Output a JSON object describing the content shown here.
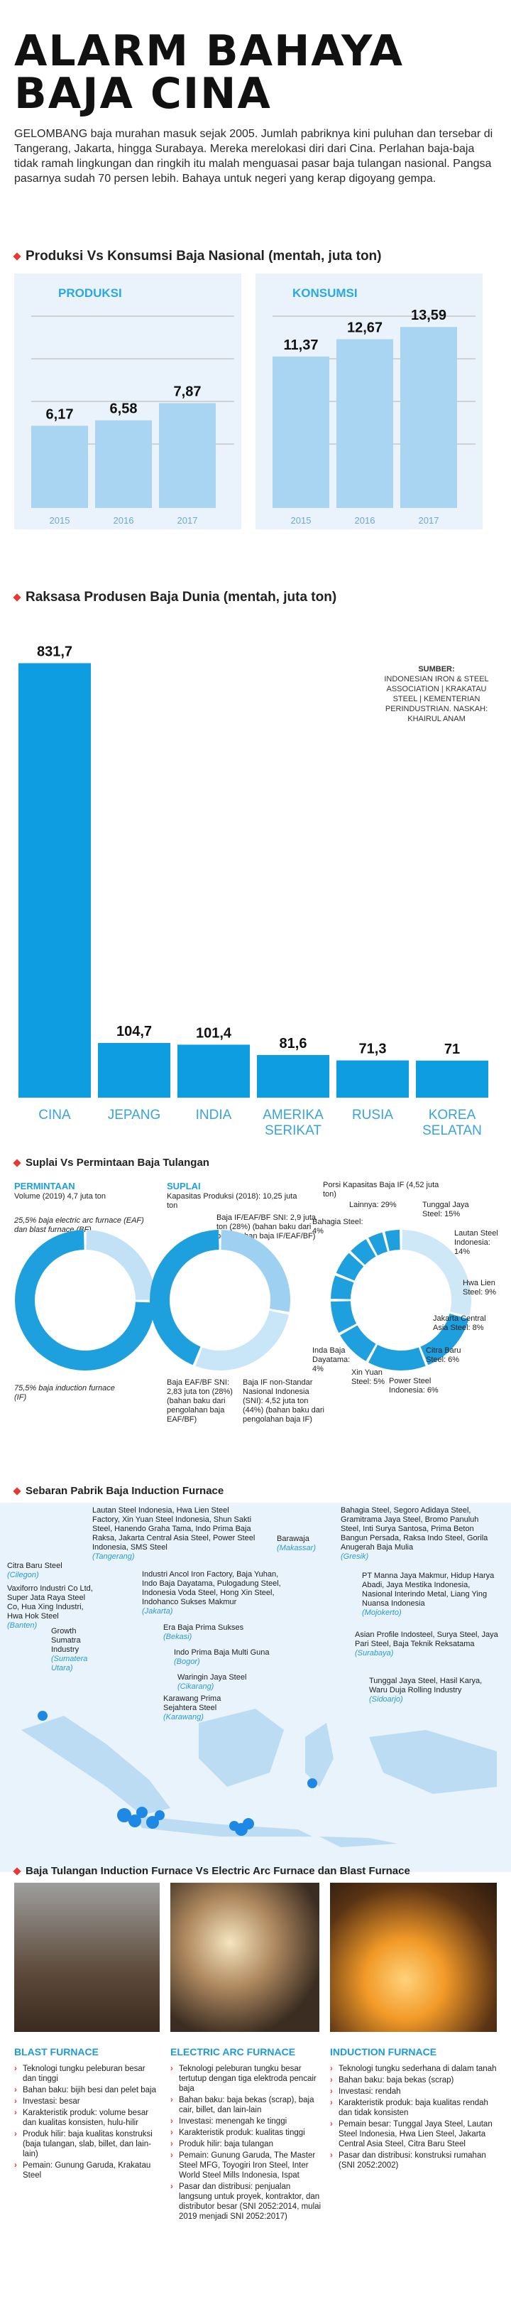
{
  "title_line1": "ALARM BAHAYA",
  "title_line2": "BAJA CINA",
  "lead": "GELOMBANG baja murahan masuk sejak 2005. Jumlah pabriknya kini puluhan dan tersebar di Tangerang, Jakarta, hingga Surabaya. Mereka merelokasi diri dari Cina. Perlahan baja-baja tidak ramah lingkungan dan ringkih itu malah menguasai pasar baja tulangan nasional. Pangsa pasarnya sudah 70 persen lebih. Bahaya untuk negeri yang kerap digoyang gempa.",
  "colors": {
    "accent": "#e53935",
    "blue_light": "#a9d4f2",
    "blue_dark": "#0d9de0",
    "panel": "#eaf3fb"
  },
  "section1": {
    "title": "Produksi Vs Konsumsi Baja Nasional (mentah, juta ton)"
  },
  "chart_data": [
    {
      "type": "bar",
      "title": "PRODUKSI",
      "categories": [
        "2015",
        "2016",
        "2017"
      ],
      "values": [
        6.17,
        6.58,
        7.87
      ],
      "labels": [
        "6,17",
        "6,58",
        "7,87"
      ]
    },
    {
      "type": "bar",
      "title": "KONSUMSI",
      "categories": [
        "2015",
        "2016",
        "2017"
      ],
      "values": [
        11.37,
        12.67,
        13.59
      ],
      "labels": [
        "11,37",
        "12,67",
        "13,59"
      ]
    },
    {
      "type": "bar",
      "title": "Raksasa Produsen Baja Dunia (mentah, juta ton)",
      "categories": [
        "CINA",
        "JEPANG",
        "INDIA",
        "AMERIKA SERIKAT",
        "RUSIA",
        "KOREA SELATAN"
      ],
      "values": [
        831.7,
        104.7,
        101.4,
        81.6,
        71.3,
        71
      ],
      "labels": [
        "831,7",
        "104,7",
        "101,4",
        "81,6",
        "71,3",
        "71"
      ]
    },
    {
      "type": "pie",
      "title": "PERMINTAAN",
      "slices": [
        {
          "label": "25,5% baja electric arc furnace (EAF) dan blast furnace (BF)",
          "value": 25.5
        },
        {
          "label": "75,5% baja induction furnace (IF)",
          "value": 75.5
        }
      ]
    },
    {
      "type": "pie",
      "title": "SUPLAI",
      "slices": [
        {
          "label": "Baja IF/EAF/BF SNI: 2,9 juta ton (28%) (bahan baku dari pengolahan baja IF/EAF/BF)",
          "value": 28
        },
        {
          "label": "Baja EAF/BF SNI: 2,83 juta ton (28%)",
          "value": 28
        },
        {
          "label": "Baja IF non-Standar Nasional Indonesia (SNI): 4,52 juta ton (44%)",
          "value": 44
        }
      ]
    },
    {
      "type": "pie",
      "title": "Porsi Kapasitas Baja IF (4,52 juta ton)",
      "slices": [
        {
          "label": "Lainnya",
          "value": 29
        },
        {
          "label": "Tunggal Jaya Steel",
          "value": 15
        },
        {
          "label": "Lautan Steel Indonesia",
          "value": 14
        },
        {
          "label": "Hwa Lien Steel",
          "value": 9
        },
        {
          "label": "Jakarta Central Asia Steel",
          "value": 8
        },
        {
          "label": "Citra Baru Steel",
          "value": 6
        },
        {
          "label": "Power Steel Indonesia",
          "value": 6
        },
        {
          "label": "Xin Yuan Steel",
          "value": 5
        },
        {
          "label": "Inda Baja Dayatama",
          "value": 4
        },
        {
          "label": "Bahagia Steel",
          "value": 4
        }
      ]
    }
  ],
  "section2": {
    "title": "Raksasa Produsen Baja Dunia (mentah, juta ton)",
    "source_title": "SUMBER:",
    "source_body": "INDONESIAN IRON & STEEL ASSOCIATION | KRAKATAU STEEL | KEMENTERIAN PERINDUSTRIAN. NASKAH: KHAIRUL ANAM"
  },
  "section3": {
    "title": "Suplai Vs Permintaan Baja Tulangan",
    "permintaan_label": "PERMINTAAN",
    "permintaan_sub": "Volume (2019) 4,7 juta ton",
    "suplai_label": "SUPLAI",
    "suplai_sub": "Kapasitas Produksi (2018): 10,25 juta ton",
    "porsi_title": "Porsi Kapasitas Baja IF (4,52 juta ton)",
    "p_eaf": "25,5% baja electric arc furnace (EAF) dan blast furnace (BF)",
    "p_if": "75,5% baja induction furnace (IF)",
    "s_a": "Baja IF/EAF/BF SNI: 2,9 juta ton (28%) (bahan baku dari pengolahan baja IF/EAF/BF)",
    "s_b": "Baja EAF/BF SNI: 2,83 juta ton (28%) (bahan baku dari pengolahan baja EAF/BF)",
    "s_c": "Baja IF non-Standar Nasional Indonesia (SNI): 4,52 juta ton (44%) (bahan baku dari pengolahan baja IF)",
    "porsi_labels": {
      "lainnya": "Lainnya: 29%",
      "tunggal": "Tunggal Jaya Steel: 15%",
      "lautan": "Lautan Steel Indonesia: 14%",
      "hwa": "Hwa Lien Steel: 9%",
      "jakarta": "Jakarta Central Asia Steel: 8%",
      "citra": "Citra Baru Steel: 6%",
      "power": "Power Steel Indonesia: 6%",
      "xin": "Xin Yuan Steel: 5%",
      "inda": "Inda Baja Dayatama: 4%",
      "bahagia": "Bahagia Steel: 4%"
    }
  },
  "section4": {
    "title": "Sebaran Pabrik Baja Induction Furnace",
    "tangerang": "Lautan Steel Indonesia, Hwa Lien Steel Factory, Xin Yuan Steel Indonesia, Shun Sakti Steel, Hanendo Graha Tama, Indo Prima Baja Raksa, Jakarta Central Asia Steel, Power Steel Indonesia, SMS Steel",
    "tangerang_loc": "(Tangerang)",
    "jakarta": "Industri Ancol Iron Factory, Baja Yuhan, Indo Baja Dayatama, Pulogadung Steel, Indonesia Voda Steel, Hong Xin Steel, Indohanco Sukses Makmur",
    "jakarta_loc": "(Jakarta)",
    "bekasi": "Era Baja Prima Sukses",
    "bekasi_loc": "(Bekasi)",
    "bogor": "Indo Prima Baja Multi Guna",
    "bogor_loc": "(Bogor)",
    "cilegon": "Citra Baru Steel",
    "cilegon_loc": "(Cilegon)",
    "banten": "Vaxiforro Industri Co Ltd, Super Jata Raya Steel Co, Hua Xing Industri, Hwa Hok Steel",
    "banten_loc": "(Banten)",
    "sumut": "Growth Sumatra Industry",
    "sumut_loc": "(Sumatera Utara)",
    "cikarang": "Waringin Jaya Steel",
    "cikarang_loc": "(Cikarang)",
    "karawang": "Karawang Prima Sejahtera Steel",
    "karawang_loc": "(Karawang)",
    "makassar": "Barawaja",
    "makassar_loc": "(Makassar)",
    "gresik": "Bahagia Steel, Segoro Adidaya Steel, Gramitrama Jaya Steel, Bromo Panuluh Steel, Inti Surya Santosa, Prima Beton Bangun Persada, Raksa Indo Steel, Gorila Anugerah Baja Mulia",
    "gresik_loc": "(Gresik)",
    "mojokerto": "PT Manna Jaya Makmur, Hidup Harya Abadi, Jaya Mestika Indonesia, Nasional Interindo Metal, Liang Ying Nuansa Indonesia",
    "mojokerto_loc": "(Mojokerto)",
    "surabaya": "Asian Profile Indosteel, Surya Steel, Jaya Pari Steel, Baja Teknik Reksatama",
    "surabaya_loc": "(Surabaya)",
    "sidoarjo": "Tunggal Jaya Steel, Hasil Karya, Waru Duja Rolling Industry",
    "sidoarjo_loc": "(Sidoarjo)"
  },
  "section5": {
    "title": "Baja Tulangan Induction Furnace Vs Electric Arc Furnace dan Blast Furnace",
    "blast": {
      "label": "BLAST FURNACE",
      "items": [
        "Teknologi tungku peleburan besar dan tinggi",
        "Bahan baku: bijih besi dan pelet baja",
        "Investasi: besar",
        "Karakteristik produk: volume besar dan kualitas konsisten, hulu-hilir",
        "Produk hilir: baja kualitas konstruksi (baja tulangan, slab, billet, dan lain-lain)",
        "Pemain: Gunung Garuda, Krakatau Steel"
      ]
    },
    "eaf": {
      "label": "ELECTRIC ARC FURNACE",
      "items": [
        "Teknologi peleburan tungku besar tertutup dengan tiga elektroda pencair baja",
        "Bahan baku: baja bekas (scrap), baja cair, billet, dan lain-lain",
        "Investasi: menengah ke tinggi",
        "Karakteristik produk: kualitas tinggi",
        "Produk hilir: baja tulangan",
        "Pemain: Gunung Garuda, The Master Steel MFG, Toyogiri Iron Steel, Inter World Steel Mills Indonesia, Ispat",
        "Pasar dan distribusi: penjualan langsung untuk proyek, kontraktor, dan distributor besar (SNI 2052:2014, mulai 2019 menjadi SNI 2052:2017)"
      ]
    },
    "induction": {
      "label": "INDUCTION FURNACE",
      "items": [
        "Teknologi tungku sederhana di dalam tanah",
        "Bahan baku: baja bekas (scrap)",
        "Investasi: rendah",
        "Karakteristik produk: baja kualitas rendah dan tidak konsisten",
        "Pemain besar: Tunggal Jaya Steel, Lautan Steel Indonesia, Hwa Lien Steel, Jakarta Central Asia Steel, Citra Baru Steel",
        "Pasar dan distribusi: konstruksi rumahan (SNI 2052:2002)"
      ]
    }
  }
}
